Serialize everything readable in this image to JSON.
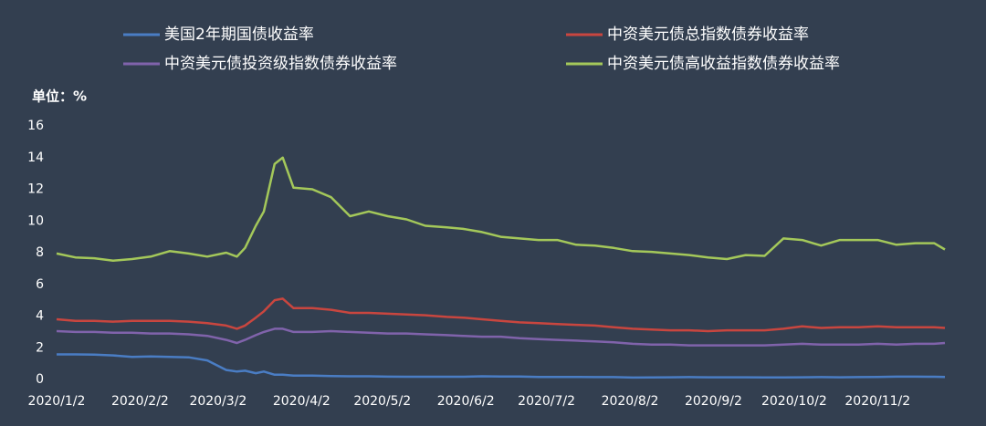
{
  "chart_data": {
    "type": "line",
    "unit_label": "单位：%",
    "x": [
      "2020/1/2",
      "2020/1/9",
      "2020/1/16",
      "2020/1/23",
      "2020/1/30",
      "2020/2/6",
      "2020/2/13",
      "2020/2/20",
      "2020/2/27",
      "2020/3/5",
      "2020/3/9",
      "2020/3/12",
      "2020/3/16",
      "2020/3/19",
      "2020/3/23",
      "2020/3/26",
      "2020/3/30",
      "2020/4/6",
      "2020/4/13",
      "2020/4/20",
      "2020/4/27",
      "2020/5/4",
      "2020/5/11",
      "2020/5/18",
      "2020/5/26",
      "2020/6/1",
      "2020/6/8",
      "2020/6/15",
      "2020/6/22",
      "2020/6/29",
      "2020/7/6",
      "2020/7/13",
      "2020/7/20",
      "2020/7/27",
      "2020/8/3",
      "2020/8/10",
      "2020/8/17",
      "2020/8/24",
      "2020/8/31",
      "2020/9/7",
      "2020/9/14",
      "2020/9/21",
      "2020/9/28",
      "2020/10/5",
      "2020/10/12",
      "2020/10/19",
      "2020/10/26",
      "2020/11/2",
      "2020/11/9",
      "2020/11/16",
      "2020/11/23",
      "2020/11/27"
    ],
    "series": [
      {
        "name": "美国2年期国债收益率",
        "color": "#4a7dc4",
        "values": [
          1.58,
          1.58,
          1.57,
          1.52,
          1.42,
          1.45,
          1.43,
          1.4,
          1.2,
          0.6,
          0.5,
          0.55,
          0.4,
          0.5,
          0.3,
          0.3,
          0.25,
          0.25,
          0.22,
          0.2,
          0.2,
          0.18,
          0.17,
          0.17,
          0.17,
          0.17,
          0.2,
          0.19,
          0.19,
          0.16,
          0.16,
          0.16,
          0.15,
          0.15,
          0.12,
          0.13,
          0.14,
          0.15,
          0.14,
          0.14,
          0.14,
          0.13,
          0.13,
          0.14,
          0.15,
          0.14,
          0.15,
          0.16,
          0.18,
          0.18,
          0.17,
          0.16
        ]
      },
      {
        "name": "中资美元债总指数债券收益率",
        "color": "#c9463f",
        "values": [
          3.8,
          3.7,
          3.7,
          3.65,
          3.7,
          3.7,
          3.7,
          3.65,
          3.55,
          3.4,
          3.2,
          3.4,
          3.9,
          4.3,
          5.0,
          5.1,
          4.5,
          4.5,
          4.4,
          4.2,
          4.2,
          4.15,
          4.1,
          4.05,
          3.95,
          3.9,
          3.8,
          3.7,
          3.6,
          3.55,
          3.5,
          3.45,
          3.4,
          3.3,
          3.2,
          3.15,
          3.1,
          3.1,
          3.05,
          3.1,
          3.1,
          3.1,
          3.2,
          3.35,
          3.25,
          3.3,
          3.3,
          3.35,
          3.3,
          3.3,
          3.3,
          3.25
        ]
      },
      {
        "name": "中资美元债投资级指数债券收益率",
        "color": "#8063ab",
        "values": [
          3.05,
          3.0,
          3.0,
          2.95,
          2.95,
          2.9,
          2.9,
          2.85,
          2.75,
          2.5,
          2.3,
          2.5,
          2.8,
          3.0,
          3.2,
          3.2,
          3.0,
          3.0,
          3.05,
          3.0,
          2.95,
          2.9,
          2.9,
          2.85,
          2.8,
          2.75,
          2.7,
          2.7,
          2.6,
          2.55,
          2.5,
          2.45,
          2.4,
          2.35,
          2.25,
          2.2,
          2.2,
          2.15,
          2.15,
          2.15,
          2.15,
          2.15,
          2.2,
          2.25,
          2.2,
          2.2,
          2.2,
          2.25,
          2.2,
          2.25,
          2.25,
          2.3
        ]
      },
      {
        "name": "中资美元债高收益指数债券收益率",
        "color": "#a4c85a",
        "values": [
          7.95,
          7.7,
          7.65,
          7.5,
          7.6,
          7.75,
          8.1,
          7.95,
          7.75,
          8.0,
          7.75,
          8.3,
          9.7,
          10.6,
          13.6,
          14.0,
          12.1,
          12.0,
          11.5,
          10.3,
          10.6,
          10.3,
          10.1,
          9.7,
          9.6,
          9.5,
          9.3,
          9.0,
          8.9,
          8.8,
          8.8,
          8.5,
          8.45,
          8.3,
          8.1,
          8.05,
          7.95,
          7.85,
          7.7,
          7.6,
          7.85,
          7.8,
          8.9,
          8.8,
          8.45,
          8.8,
          8.8,
          8.8,
          8.5,
          8.6,
          8.6,
          8.2
        ]
      }
    ],
    "xlim": [
      "2020/1/2",
      "2020/11/27"
    ],
    "xticks": [
      "2020/1/2",
      "2020/2/2",
      "2020/3/2",
      "2020/4/2",
      "2020/5/2",
      "2020/6/2",
      "2020/7/2",
      "2020/8/2",
      "2020/9/2",
      "2020/10/2",
      "2020/11/2"
    ],
    "ylim": [
      0,
      16
    ],
    "yticks": [
      0,
      2,
      4,
      6,
      8,
      10,
      12,
      14,
      16
    ],
    "grid": false
  }
}
